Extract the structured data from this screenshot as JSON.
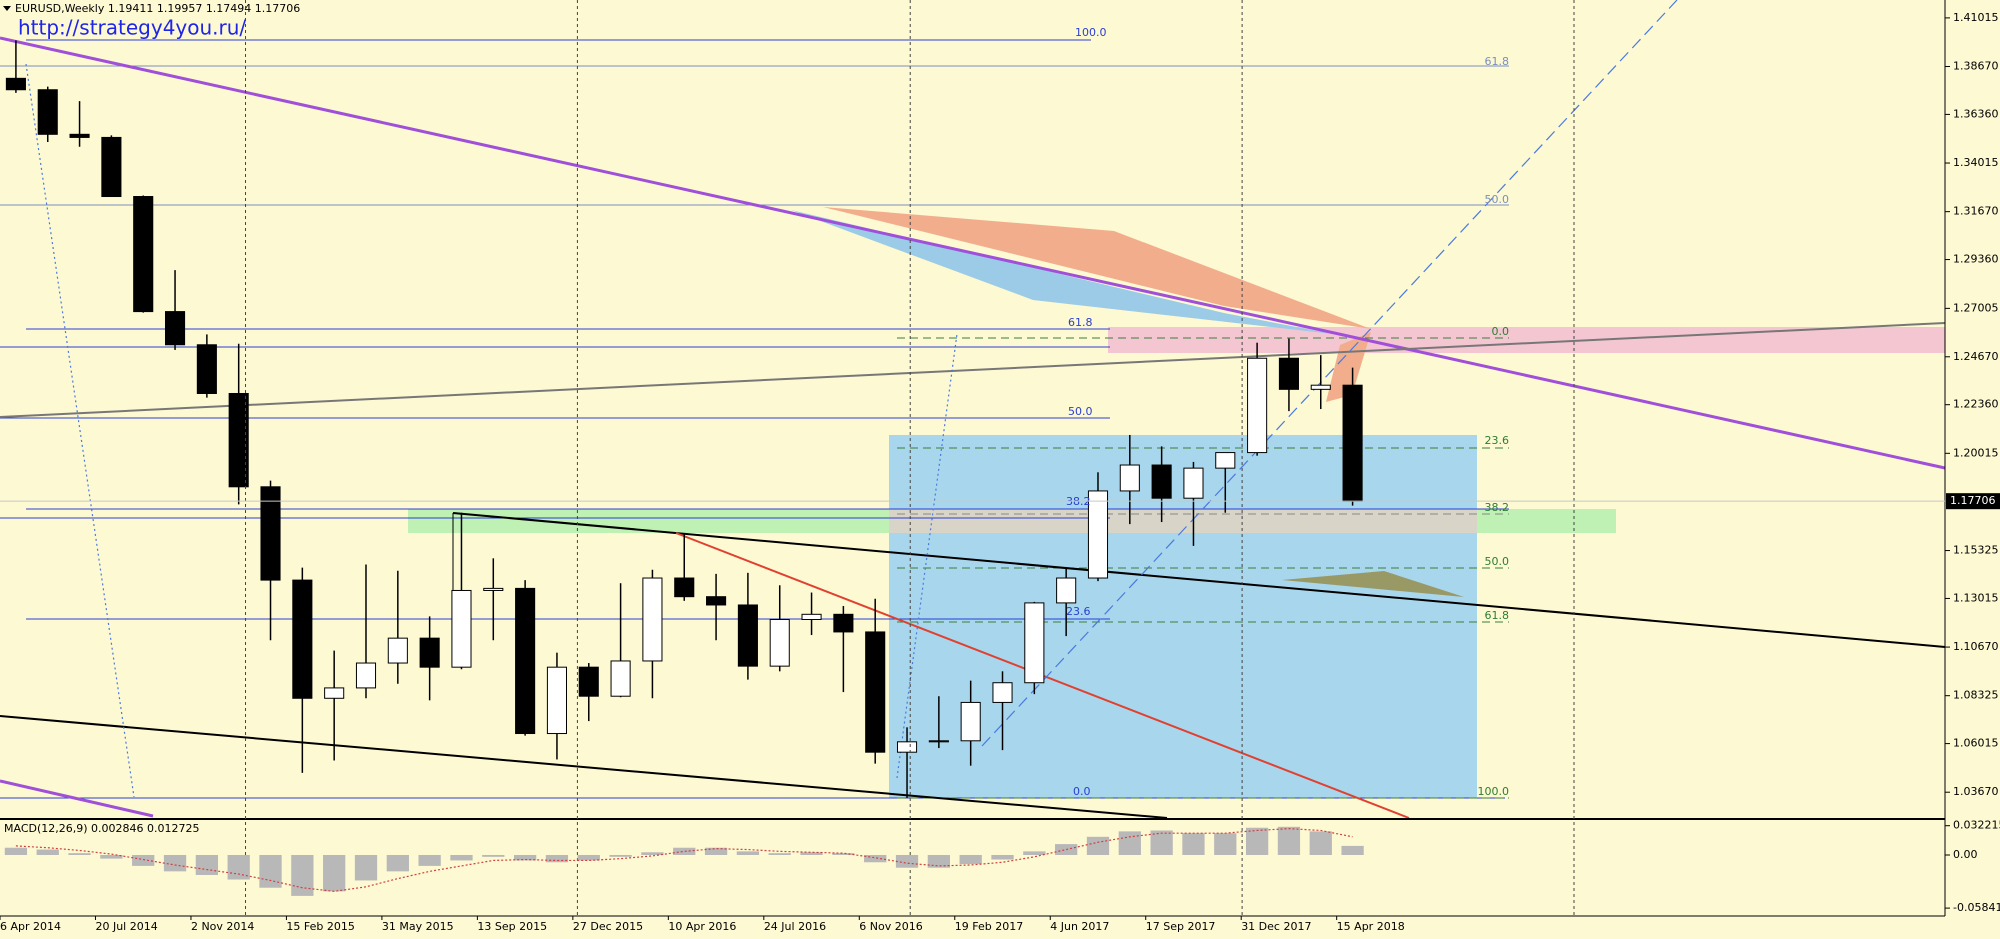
{
  "chart_data": {
    "type": "candlestick",
    "title": "EURUSD,Weekly  1.19411 1.19957 1.17494 1.17706",
    "url": "http://strategy4you.ru/",
    "up_color": "#ffffff",
    "down_color": "#000000",
    "x": [
      "2014-04-06",
      "2014-05-11",
      "2014-06-15",
      "2014-07-20",
      "2014-08-24",
      "2014-09-28",
      "2014-11-02",
      "2014-12-07",
      "2015-01-11",
      "2015-02-15",
      "2015-03-22",
      "2015-04-26",
      "2015-05-31",
      "2015-07-05",
      "2015-08-09",
      "2015-09-13",
      "2015-10-18",
      "2015-11-22",
      "2015-12-27",
      "2016-01-31",
      "2016-03-06",
      "2016-04-10",
      "2016-05-15",
      "2016-06-19",
      "2016-07-24",
      "2016-08-28",
      "2016-10-02",
      "2016-11-06",
      "2016-12-11",
      "2017-01-15",
      "2017-02-19",
      "2017-03-26",
      "2017-04-30",
      "2017-06-04",
      "2017-07-09",
      "2017-08-13",
      "2017-09-17",
      "2017-10-22",
      "2017-11-26",
      "2017-12-31",
      "2018-02-04",
      "2018-03-11",
      "2018-04-15"
    ],
    "open": [
      1.381,
      1.3755,
      1.354,
      1.3525,
      1.324,
      1.2685,
      1.2525,
      1.229,
      1.184,
      1.139,
      1.082,
      1.087,
      1.099,
      1.111,
      1.097,
      1.134,
      1.135,
      1.065,
      1.097,
      1.083,
      1.1,
      1.14,
      1.131,
      1.127,
      1.0975,
      1.12,
      1.1225,
      1.114,
      1.056,
      1.061,
      1.0615,
      1.08,
      1.0895,
      1.128,
      1.14,
      1.182,
      1.1945,
      1.1785,
      1.193,
      1.2005,
      1.246,
      1.231,
      1.233
    ],
    "high": [
      1.3993,
      1.377,
      1.37,
      1.3535,
      1.3245,
      1.2885,
      1.2575,
      1.253,
      1.187,
      1.145,
      1.105,
      1.1465,
      1.1435,
      1.1215,
      1.1715,
      1.1495,
      1.139,
      1.104,
      1.099,
      1.1375,
      1.144,
      1.1615,
      1.142,
      1.1425,
      1.1365,
      1.133,
      1.1265,
      1.13,
      1.068,
      1.083,
      1.0905,
      1.095,
      1.1285,
      1.1445,
      1.191,
      1.209,
      1.2035,
      1.196,
      1.2005,
      1.2535,
      1.2555,
      1.2475,
      1.2415
    ],
    "low": [
      1.374,
      1.3503,
      1.348,
      1.324,
      1.268,
      1.25,
      1.227,
      1.1755,
      1.11,
      1.046,
      1.052,
      1.082,
      1.089,
      1.081,
      1.096,
      1.11,
      1.064,
      1.0525,
      1.071,
      1.0825,
      1.082,
      1.129,
      1.11,
      1.091,
      1.095,
      1.1125,
      1.085,
      1.0505,
      1.034,
      1.058,
      1.0495,
      1.057,
      1.084,
      1.112,
      1.1385,
      1.166,
      1.167,
      1.1555,
      1.1715,
      1.199,
      1.2205,
      1.2215,
      1.17494
    ],
    "close": [
      1.3755,
      1.354,
      1.3525,
      1.324,
      1.2685,
      1.2525,
      1.229,
      1.184,
      1.139,
      1.082,
      1.087,
      1.099,
      1.111,
      1.097,
      1.134,
      1.135,
      1.065,
      1.097,
      1.083,
      1.1,
      1.14,
      1.131,
      1.127,
      1.0975,
      1.12,
      1.1225,
      1.114,
      1.056,
      1.061,
      1.0615,
      1.08,
      1.0895,
      1.128,
      1.14,
      1.182,
      1.1945,
      1.1785,
      1.193,
      1.2005,
      1.246,
      1.231,
      1.233,
      1.17706
    ],
    "xlim": [
      "2014-04-06",
      "2020-02-13"
    ],
    "xticks": [
      {
        "value": "2014-04-06",
        "label": "6 Apr 2014"
      },
      {
        "value": "2014-07-20",
        "label": "20 Jul 2014"
      },
      {
        "value": "2014-11-02",
        "label": "2 Nov 2014"
      },
      {
        "value": "2015-02-15",
        "label": "15 Feb 2015"
      },
      {
        "value": "2015-05-31",
        "label": "31 May 2015"
      },
      {
        "value": "2015-09-13",
        "label": "13 Sep 2015"
      },
      {
        "value": "2015-12-27",
        "label": "27 Dec 2015"
      },
      {
        "value": "2016-04-10",
        "label": "10 Apr 2016"
      },
      {
        "value": "2016-07-24",
        "label": "24 Jul 2016"
      },
      {
        "value": "2016-11-06",
        "label": "6 Nov 2016"
      },
      {
        "value": "2017-02-19",
        "label": "19 Feb 2017"
      },
      {
        "value": "2017-06-04",
        "label": "4 Jun 2017"
      },
      {
        "value": "2017-09-17",
        "label": "17 Sep 2017"
      },
      {
        "value": "2017-12-31",
        "label": "31 Dec 2017"
      },
      {
        "value": "2018-04-15",
        "label": "15 Apr 2018"
      }
    ],
    "separators": [
      "2015-01-01",
      "2016-01-01",
      "2017-01-01",
      "2018-01-01",
      "2019-01-01"
    ],
    "ylim": [
      1.02426,
      1.41878
    ],
    "yticks": [
      1.41015,
      {
        "value": 1.3867,
        "label": "1.38670"
      },
      {
        "value": 1.3636,
        "label": "1.36360"
      },
      1.34015,
      {
        "value": 1.3167,
        "label": "1.31670"
      },
      {
        "value": 1.2936,
        "label": "1.29360"
      },
      1.27005,
      {
        "value": 1.2467,
        "label": "1.24670"
      },
      {
        "value": 1.2236,
        "label": "1.22360"
      },
      1.20015,
      1.15325,
      1.13015,
      {
        "value": 1.1067,
        "label": "1.10670"
      },
      1.08325,
      1.06015,
      {
        "value": 1.0367,
        "label": "1.03670"
      }
    ],
    "current_price": 1.17706,
    "fib_blue": [
      "100.0",
      "61.8",
      "50.0",
      "38.2",
      "23.6",
      "0.0"
    ],
    "fib_steel": [
      "61.8",
      "50.0"
    ],
    "fib_green": [
      "0.0",
      "23.6",
      "38.2",
      "50.0",
      "61.8",
      "100.0"
    ],
    "macd": {
      "label": "MACD(12,26,9) 0.002846 0.012725",
      "ylim": [
        -0.0671,
        0.0385
      ],
      "yticks": [
        0.032215,
        {
          "value": 0,
          "label": "0.00"
        },
        -0.058413
      ],
      "histogram": [
        0.008,
        0.006,
        0.002,
        -0.004,
        -0.012,
        -0.018,
        -0.022,
        -0.027,
        -0.036,
        -0.045,
        -0.04,
        -0.028,
        -0.018,
        -0.012,
        -0.006,
        -0.002,
        -0.006,
        -0.008,
        -0.006,
        -0.002,
        0.003,
        0.008,
        0.008,
        0.004,
        0.002,
        0.003,
        0.002,
        -0.008,
        -0.014,
        -0.014,
        -0.01,
        -0.005,
        0.004,
        0.012,
        0.02,
        0.026,
        0.027,
        0.024,
        0.024,
        0.03,
        0.031,
        0.026,
        0.01
      ],
      "signal": [
        0.01,
        0.008,
        0.005,
        0.001,
        -0.005,
        -0.011,
        -0.016,
        -0.021,
        -0.028,
        -0.036,
        -0.04,
        -0.035,
        -0.026,
        -0.018,
        -0.012,
        -0.006,
        -0.005,
        -0.006,
        -0.006,
        -0.004,
        -0.001,
        0.004,
        0.007,
        0.006,
        0.004,
        0.003,
        0.002,
        -0.003,
        -0.009,
        -0.012,
        -0.011,
        -0.008,
        -0.002,
        0.006,
        0.014,
        0.02,
        0.024,
        0.024,
        0.024,
        0.027,
        0.029,
        0.027,
        0.02
      ],
      "signal_color": "#d04040",
      "histogram_color": "#b8b8b8"
    }
  }
}
